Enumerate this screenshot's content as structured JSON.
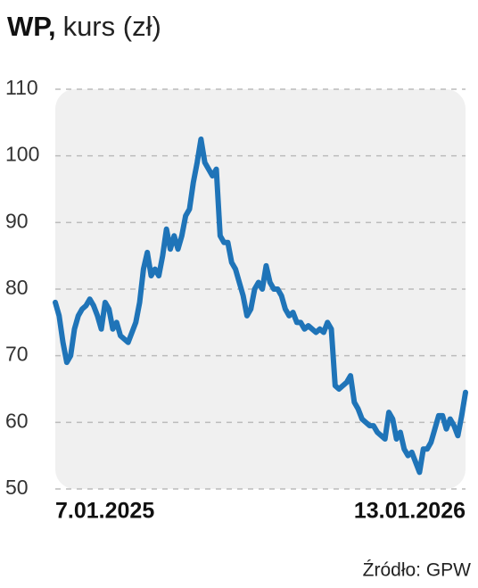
{
  "chart_data": {
    "type": "line",
    "title": "WP,",
    "subtitle": "kurs (zł)",
    "source": "Źródło: GPW",
    "categories": [
      "7.01.2025",
      null,
      null,
      null,
      null,
      null,
      null,
      null,
      null,
      null,
      null,
      null,
      null,
      null,
      null,
      null,
      null,
      null,
      null,
      null,
      null,
      null,
      null,
      null,
      null,
      null,
      null,
      null,
      null,
      null,
      null,
      null,
      null,
      null,
      null,
      null,
      null,
      null,
      null,
      null,
      null,
      null,
      null,
      null,
      null,
      null,
      null,
      null,
      null,
      null,
      null,
      null,
      null,
      null,
      null,
      null,
      null,
      null,
      null,
      null,
      null,
      null,
      null,
      null,
      null,
      null,
      null,
      null,
      null,
      null,
      null,
      null,
      null,
      null,
      null,
      null,
      null,
      null,
      null,
      null,
      null,
      null,
      null,
      null,
      null,
      null,
      null,
      null,
      null,
      null,
      null,
      null,
      null,
      null,
      null,
      null,
      null,
      null,
      null,
      null,
      null,
      null,
      null,
      null,
      null,
      null,
      null,
      "13.01.2026"
    ],
    "series": [
      {
        "name": "WP",
        "color": "#1f74b8",
        "values": [
          78,
          76,
          72,
          69,
          70,
          74,
          76,
          77,
          77.5,
          78.5,
          77.5,
          76,
          74,
          78,
          77,
          74,
          75,
          73,
          72.5,
          72,
          73.5,
          75,
          78,
          83,
          85.5,
          82,
          83,
          82,
          85,
          89,
          86,
          88,
          86,
          88,
          91,
          92,
          96,
          99,
          102.5,
          99,
          98,
          97,
          98,
          88,
          87,
          87,
          84,
          83,
          81,
          79,
          76,
          77,
          80,
          81,
          80,
          83.5,
          81,
          80,
          80,
          79,
          77,
          76,
          76.5,
          75,
          75,
          74,
          74.5,
          74,
          73.5,
          74,
          73.5,
          75,
          74,
          65.5,
          65,
          65.5,
          66,
          67,
          63,
          62,
          60.5,
          60,
          59.5,
          59.5,
          58.5,
          58,
          57.5,
          61.5,
          60.5,
          57.5,
          58.5,
          56,
          55,
          55.5,
          54,
          52.5,
          56,
          56,
          57,
          59,
          61,
          61,
          59,
          60.5,
          59.5,
          58,
          61,
          64.5
        ]
      }
    ],
    "ylim": [
      50,
      110
    ],
    "yticks": [
      50,
      60,
      70,
      80,
      90,
      100,
      110
    ],
    "grid": true
  }
}
